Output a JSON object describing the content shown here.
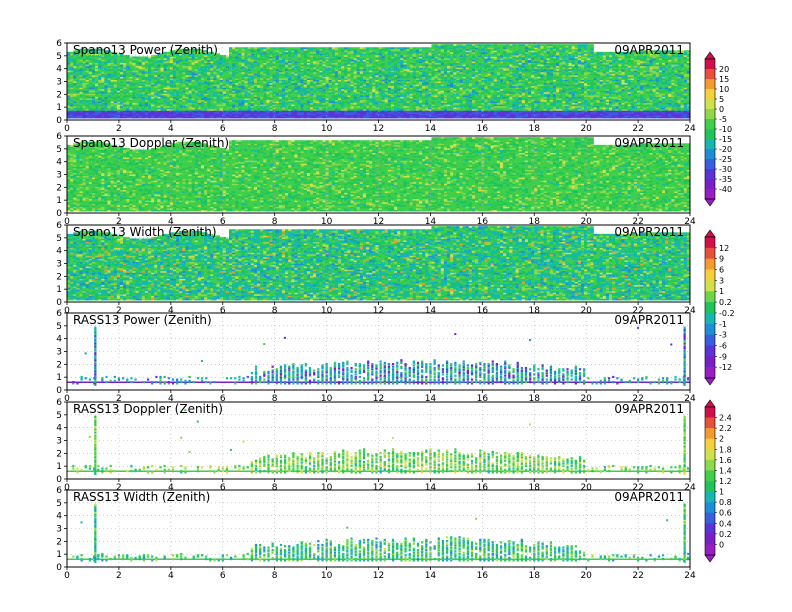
{
  "chart_data": {
    "type": "heatmap",
    "x_ticks": [
      "0",
      "2",
      "4",
      "6",
      "8",
      "10",
      "12",
      "14",
      "16",
      "18",
      "20",
      "22",
      "24"
    ],
    "xlim": [
      0,
      24
    ],
    "ylim": [
      0,
      6
    ],
    "y_ticks": [
      "0",
      "1",
      "2",
      "3",
      "4",
      "5",
      "6"
    ],
    "grid": true,
    "panels": [
      {
        "title": "Spano13 Power (Zenith)",
        "date": "09APR2011",
        "kind": "wind",
        "scale": "power",
        "colorbar": 0
      },
      {
        "title": "Spano13 Doppler (Zenith)",
        "date": "09APR2011",
        "kind": "wind",
        "scale": "doppler",
        "colorbar": 0
      },
      {
        "title": "Spano13 Width (Zenith)",
        "date": "09APR2011",
        "kind": "wind",
        "scale": "width",
        "colorbar": 1
      },
      {
        "title": "RASS13 Power (Zenith)",
        "date": "09APR2011",
        "kind": "rass",
        "scale": "rpower",
        "colorbar": 1
      },
      {
        "title": "RASS13 Doppler (Zenith)",
        "date": "09APR2011",
        "kind": "rass",
        "scale": "rdoppler",
        "colorbar": 2
      },
      {
        "title": "RASS13 Width (Zenith)",
        "date": "09APR2011",
        "kind": "rass",
        "scale": "rwidth",
        "colorbar": 2
      }
    ],
    "colorbars": [
      {
        "labels": [
          "20",
          "15",
          "10",
          "5",
          "0",
          "-5",
          "-10",
          "-15",
          "-20",
          "-25",
          "-30",
          "-35",
          "-40"
        ],
        "colors": [
          "#d0104a",
          "#e8503a",
          "#f59a2c",
          "#f5d03a",
          "#cfe24a",
          "#8fd84a",
          "#3fcf4a",
          "#1fc45a",
          "#14b8b0",
          "#1e8fd6",
          "#3a5ee0",
          "#5a34d8",
          "#7a1fc8",
          "#9a1cc4"
        ]
      },
      {
        "labels": [
          "12",
          "9",
          "6",
          "3",
          "1",
          "0.2",
          "-0.2",
          "-1",
          "-3",
          "-6",
          "-9",
          "-12"
        ],
        "colors": [
          "#d0104a",
          "#e8503a",
          "#f59a2c",
          "#f5d03a",
          "#cfe24a",
          "#6fd448",
          "#1fc45a",
          "#14b8b0",
          "#1e8fd6",
          "#3a5ee0",
          "#5a34d8",
          "#7a1fc8",
          "#9a1cc4"
        ]
      },
      {
        "labels": [
          "2.4",
          "2.2",
          "2",
          "1.8",
          "1.6",
          "1.4",
          "1.2",
          "1",
          "0.8",
          "0.6",
          "0.4",
          "0.2",
          "0"
        ],
        "colors": [
          "#d0104a",
          "#e8503a",
          "#f59a2c",
          "#f5d03a",
          "#cfe24a",
          "#8fd84a",
          "#3fcf4a",
          "#1fc45a",
          "#14b8b0",
          "#1e8fd6",
          "#3a5ee0",
          "#5a34d8",
          "#7a1fc8",
          "#9a1cc4"
        ]
      }
    ]
  }
}
